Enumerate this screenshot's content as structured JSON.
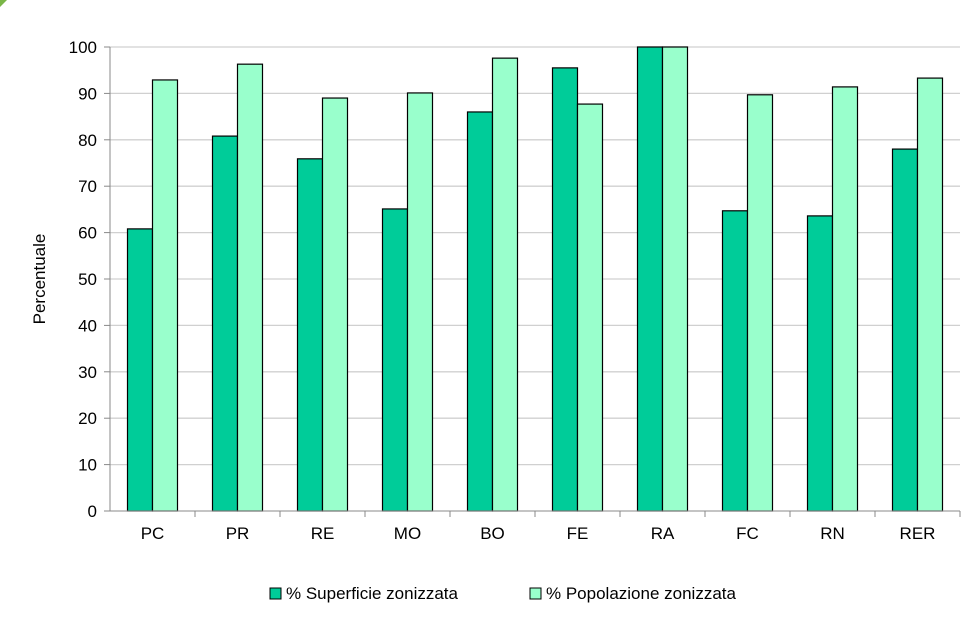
{
  "chart_data": {
    "type": "bar",
    "title": "",
    "xlabel": "",
    "ylabel": "Percentuale",
    "ylim": [
      0,
      100
    ],
    "yticks": [
      0,
      10,
      20,
      30,
      40,
      50,
      60,
      70,
      80,
      90,
      100
    ],
    "grid": true,
    "legend_position": "bottom",
    "categories": [
      "PC",
      "PR",
      "RE",
      "MO",
      "BO",
      "FE",
      "RA",
      "FC",
      "RN",
      "RER"
    ],
    "series": [
      {
        "name": "% Superficie zonizzata",
        "color": "#00CC99",
        "values": [
          60.8,
          80.8,
          75.9,
          65.1,
          86.0,
          95.5,
          100,
          64.7,
          63.6,
          78.0
        ]
      },
      {
        "name": "% Popolazione zonizzata",
        "color": "#99FFCC",
        "values": [
          92.9,
          96.3,
          89.0,
          90.1,
          97.6,
          87.7,
          100,
          89.7,
          91.4,
          93.3
        ]
      }
    ]
  }
}
